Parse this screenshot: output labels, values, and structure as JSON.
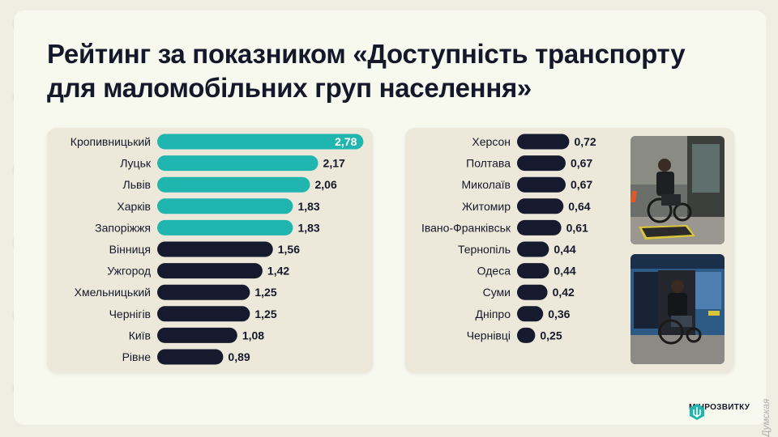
{
  "title": "Рейтинг за показником «Доступність транспорту для маломобільних груп населення»",
  "logo_text": "МІНРОЗВИТКУ",
  "watermark": "Думская",
  "colors": {
    "teal": "#21b5b0",
    "navy": "#161a2e",
    "panel": "#ece9db",
    "background": "#eeefe2"
  },
  "chart_data": [
    {
      "type": "bar",
      "orientation": "horizontal",
      "categories": [
        "Кропивницький",
        "Луцьк",
        "Львів",
        "Харків",
        "Запоріжжя",
        "Вінниця",
        "Ужгород",
        "Хмельницький",
        "Чернігів",
        "Київ",
        "Рівне"
      ],
      "values": [
        2.78,
        2.17,
        2.06,
        1.83,
        1.83,
        1.56,
        1.42,
        1.25,
        1.25,
        1.08,
        0.89
      ],
      "labels": [
        "2,78",
        "2,17",
        "2,06",
        "1,83",
        "1,83",
        "1,56",
        "1,42",
        "1,25",
        "1,25",
        "1,08",
        "0,89"
      ],
      "highlight_count": 5,
      "highlight_color": "#21b5b0",
      "base_color": "#161a2e"
    },
    {
      "type": "bar",
      "orientation": "horizontal",
      "categories": [
        "Херсон",
        "Полтава",
        "Миколаїв",
        "Житомир",
        "Івано-Франківськ",
        "Тернопіль",
        "Одеса",
        "Суми",
        "Дніпро",
        "Чернівці"
      ],
      "values": [
        0.72,
        0.67,
        0.67,
        0.64,
        0.61,
        0.44,
        0.44,
        0.42,
        0.36,
        0.25
      ],
      "labels": [
        "0,72",
        "0,67",
        "0,67",
        "0,64",
        "0,61",
        "0,44",
        "0,44",
        "0,42",
        "0,36",
        "0,25"
      ],
      "highlight_count": 0,
      "highlight_color": "#21b5b0",
      "base_color": "#161a2e"
    }
  ]
}
